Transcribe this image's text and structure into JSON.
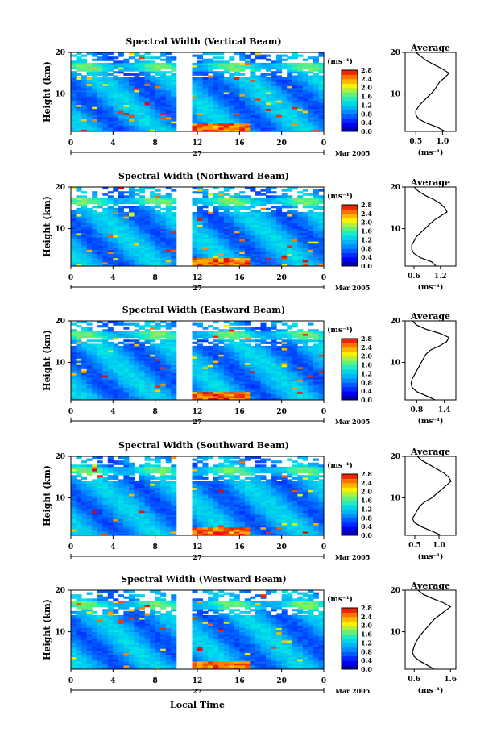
{
  "figure": {
    "xaxis_label": "Local Time"
  },
  "chart_data": [
    {
      "type": "heatmap",
      "title": "Spectral Width (Vertical Beam)",
      "ylabel": "Height (km)",
      "x_ticks": [
        "0",
        "4",
        "8",
        "12",
        "16",
        "20",
        "0"
      ],
      "y_ticks": [
        "20",
        "10"
      ],
      "xlim": [
        0,
        24
      ],
      "ylim": [
        1,
        20
      ],
      "date_label": "27",
      "date_suffix": "Mar 2005",
      "colorbar": {
        "unit": "(ms⁻¹)",
        "ticks": [
          "2.8",
          "2.4",
          "2.0",
          "1.6",
          "1.2",
          "0.8",
          "0.4",
          "0.0"
        ],
        "range": [
          0,
          2.8
        ]
      },
      "data_gap": [
        10,
        11.4
      ],
      "average": {
        "title": "Average",
        "unit": "(ms⁻¹)",
        "x_ticks": [
          "0.5",
          "1.0"
        ],
        "xlim": [
          0.3,
          1.25
        ],
        "y_ticks": [
          "20",
          "10"
        ],
        "heights": [
          1,
          2,
          3,
          4,
          5,
          6,
          7,
          8,
          9,
          10,
          11,
          12,
          13,
          14,
          15,
          16,
          17,
          18,
          19,
          20
        ],
        "values": [
          1.05,
          0.9,
          0.7,
          0.55,
          0.5,
          0.5,
          0.55,
          0.62,
          0.7,
          0.78,
          0.85,
          0.9,
          0.95,
          1.05,
          1.12,
          1.0,
          0.85,
          0.7,
          0.6,
          0.5
        ]
      }
    },
    {
      "type": "heatmap",
      "title": "Spectral Width (Northward Beam)",
      "ylabel": "Height (km)",
      "x_ticks": [
        "0",
        "4",
        "8",
        "12",
        "16",
        "20",
        "0"
      ],
      "y_ticks": [
        "20",
        "10"
      ],
      "xlim": [
        0,
        24
      ],
      "ylim": [
        1,
        20
      ],
      "date_label": "27",
      "date_suffix": "Mar 2005",
      "colorbar": {
        "unit": "(ms⁻¹)",
        "ticks": [
          "2.8",
          "2.4",
          "2.0",
          "1.6",
          "1.2",
          "0.8",
          "0.4",
          "0.0"
        ],
        "range": [
          0,
          2.8
        ]
      },
      "data_gap": [
        10,
        11.4
      ],
      "average": {
        "title": "Average",
        "unit": "(ms⁻¹)",
        "x_ticks": [
          "0.6",
          "1.2"
        ],
        "xlim": [
          0.4,
          1.55
        ],
        "y_ticks": [
          "20",
          "10"
        ],
        "heights": [
          1,
          2,
          3,
          4,
          5,
          6,
          7,
          8,
          9,
          10,
          11,
          12,
          13,
          14,
          15,
          16,
          17,
          18,
          19,
          20
        ],
        "values": [
          1.1,
          1.0,
          0.75,
          0.6,
          0.55,
          0.55,
          0.6,
          0.65,
          0.75,
          0.85,
          0.95,
          1.05,
          1.2,
          1.35,
          1.3,
          1.2,
          1.05,
          0.85,
          0.7,
          0.6
        ]
      }
    },
    {
      "type": "heatmap",
      "title": "Spectral Width (Eastward Beam)",
      "ylabel": "Height (km)",
      "x_ticks": [
        "0",
        "4",
        "8",
        "12",
        "16",
        "20",
        "0"
      ],
      "y_ticks": [
        "20",
        "10"
      ],
      "xlim": [
        0,
        24
      ],
      "ylim": [
        1,
        20
      ],
      "date_label": "27",
      "date_suffix": "Mar 2005",
      "colorbar": {
        "unit": "(ms⁻¹)",
        "ticks": [
          "2.8",
          "2.4",
          "2.0",
          "1.6",
          "1.2",
          "0.8",
          "0.4",
          "0.0"
        ],
        "range": [
          0,
          2.8
        ]
      },
      "data_gap": [
        10,
        11.4
      ],
      "average": {
        "title": "Average",
        "unit": "(ms⁻¹)",
        "x_ticks": [
          "0.8",
          "1.4"
        ],
        "xlim": [
          0.55,
          1.65
        ],
        "y_ticks": [
          "20",
          "10"
        ],
        "heights": [
          1,
          2,
          3,
          4,
          5,
          6,
          7,
          8,
          9,
          10,
          11,
          12,
          13,
          14,
          15,
          16,
          17,
          18,
          19,
          20
        ],
        "values": [
          1.2,
          1.0,
          0.8,
          0.7,
          0.68,
          0.7,
          0.75,
          0.8,
          0.85,
          0.9,
          0.95,
          1.0,
          1.1,
          1.3,
          1.45,
          1.5,
          1.3,
          1.0,
          0.8,
          0.7
        ]
      }
    },
    {
      "type": "heatmap",
      "title": "Spectral Width (Southward Beam)",
      "ylabel": "Height (km)",
      "x_ticks": [
        "0",
        "4",
        "8",
        "12",
        "16",
        "20",
        "0"
      ],
      "y_ticks": [
        "20",
        "10"
      ],
      "xlim": [
        0,
        24
      ],
      "ylim": [
        1,
        20
      ],
      "date_label": "27",
      "date_suffix": "Mar 2005",
      "colorbar": {
        "unit": "(ms⁻¹)",
        "ticks": [
          "2.8",
          "2.4",
          "2.0",
          "1.6",
          "1.2",
          "0.8",
          "0.4",
          "0.0"
        ],
        "range": [
          0,
          2.8
        ]
      },
      "data_gap": [
        10,
        11.4
      ],
      "average": {
        "title": "Average",
        "unit": "(ms⁻¹)",
        "x_ticks": [
          "0.5",
          "1.0"
        ],
        "xlim": [
          0.3,
          1.35
        ],
        "y_ticks": [
          "20",
          "10"
        ],
        "heights": [
          1,
          2,
          3,
          4,
          5,
          6,
          7,
          8,
          9,
          10,
          11,
          12,
          13,
          14,
          15,
          16,
          17,
          18,
          19,
          20
        ],
        "values": [
          1.05,
          0.85,
          0.65,
          0.5,
          0.45,
          0.5,
          0.55,
          0.6,
          0.7,
          0.85,
          0.95,
          1.05,
          1.15,
          1.25,
          1.2,
          1.1,
          0.95,
          0.8,
          0.65,
          0.55
        ]
      }
    },
    {
      "type": "heatmap",
      "title": "Spectral Width (Westward Beam)",
      "ylabel": "Height (km)",
      "x_ticks": [
        "0",
        "4",
        "8",
        "12",
        "16",
        "20",
        "0"
      ],
      "y_ticks": [
        "20",
        "10"
      ],
      "xlim": [
        0,
        24
      ],
      "ylim": [
        1,
        20
      ],
      "date_label": "27",
      "date_suffix": "Mar 2005",
      "colorbar": {
        "unit": "(ms⁻¹)",
        "ticks": [
          "2.8",
          "2.4",
          "2.0",
          "1.6",
          "1.2",
          "0.8",
          "0.4",
          "0.0"
        ],
        "range": [
          0,
          2.8
        ]
      },
      "data_gap": [
        10,
        11.4
      ],
      "average": {
        "title": "Average",
        "unit": "(ms⁻¹)",
        "x_ticks": [
          "0.6",
          "1.6"
        ],
        "xlim": [
          0.35,
          1.75
        ],
        "y_ticks": [
          "20",
          "10"
        ],
        "heights": [
          1,
          2,
          3,
          4,
          5,
          6,
          7,
          8,
          9,
          10,
          11,
          12,
          13,
          14,
          15,
          16,
          17,
          18,
          19,
          20
        ],
        "values": [
          1.15,
          0.95,
          0.75,
          0.6,
          0.55,
          0.58,
          0.62,
          0.68,
          0.75,
          0.85,
          0.95,
          1.05,
          1.15,
          1.3,
          1.45,
          1.6,
          1.4,
          1.1,
          0.85,
          0.7
        ]
      }
    }
  ]
}
